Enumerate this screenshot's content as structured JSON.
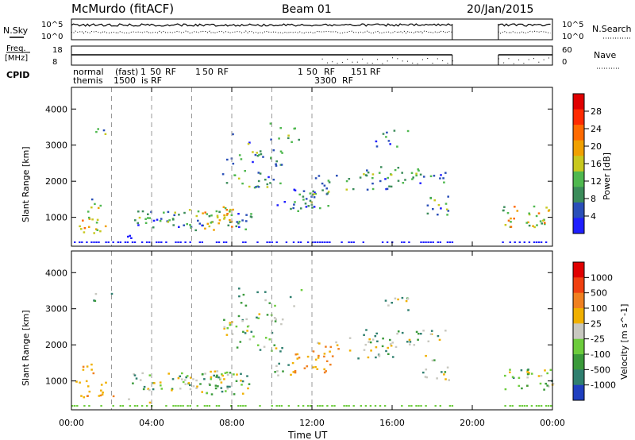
{
  "header": {
    "station": "McMurdo (fitACF)",
    "beam": "Beam 01",
    "date": "20/Jan/2015"
  },
  "top_panels": {
    "nsky_label": "N.Sky",
    "nsky_ticks": [
      "10^5",
      "10^0"
    ],
    "nsearch_ticks": [
      "10^5",
      "10^0"
    ],
    "nsearch_label": "N.Search",
    "freq_label_1": "Freq.",
    "freq_label_2": "[MHz]",
    "freq_ticks": [
      "18",
      "8"
    ],
    "nave_ticks": [
      "60",
      "0"
    ],
    "nave_label": "Nave",
    "cpid_label": "CPID",
    "cpid_row1": [
      "normal",
      "(fast)",
      "1",
      "50",
      "RF",
      "1",
      "50",
      "RF",
      "1",
      "50",
      "RF",
      "151",
      "RF"
    ],
    "cpid_row2": [
      "themis",
      "1500",
      "is",
      "RF",
      "3300",
      "RF"
    ]
  },
  "chart_data": [
    {
      "type": "heatmap",
      "name": "Power",
      "ylabel": "Slant Range [km]",
      "xlabel": "Time UT",
      "yticks": [
        "1000",
        "2000",
        "3000",
        "4000"
      ],
      "xticks": [
        "00:00",
        "04:00",
        "08:00",
        "12:00",
        "16:00",
        "20:00",
        "00:00"
      ],
      "ylim": [
        200,
        4600
      ],
      "xlim": [
        0,
        24
      ],
      "colorbar": {
        "label": "Power [dB]",
        "ticks": [
          "4",
          "8",
          "12",
          "16",
          "20",
          "24",
          "28"
        ],
        "colors": [
          "#1f1fff",
          "#2a4fb8",
          "#3b8c5a",
          "#4fb84f",
          "#c8c81e",
          "#f0a000",
          "#ff6a00",
          "#ff2a00",
          "#e00000"
        ]
      },
      "data_gap_hours": [
        19.0,
        21.3
      ]
    },
    {
      "type": "heatmap",
      "name": "Velocity",
      "ylabel": "Slant Range [km]",
      "xlabel": "Time UT",
      "yticks": [
        "1000",
        "2000",
        "3000",
        "4000"
      ],
      "xticks": [
        "00:00",
        "04:00",
        "08:00",
        "12:00",
        "16:00",
        "20:00",
        "00:00"
      ],
      "ylim": [
        200,
        4600
      ],
      "xlim": [
        0,
        24
      ],
      "colorbar": {
        "label": "Velocity [m s^-1]",
        "ticks": [
          "1000",
          "500",
          "100",
          "25",
          "-25",
          "-100",
          "-500",
          "-1000"
        ],
        "colors": [
          "#1f3fbf",
          "#2f7f6f",
          "#3a9a3a",
          "#6ccc3c",
          "#c8c8c0",
          "#f0b000",
          "#f08020",
          "#f04010",
          "#e00000"
        ]
      },
      "data_gap_hours": [
        19.0,
        21.3
      ]
    }
  ]
}
